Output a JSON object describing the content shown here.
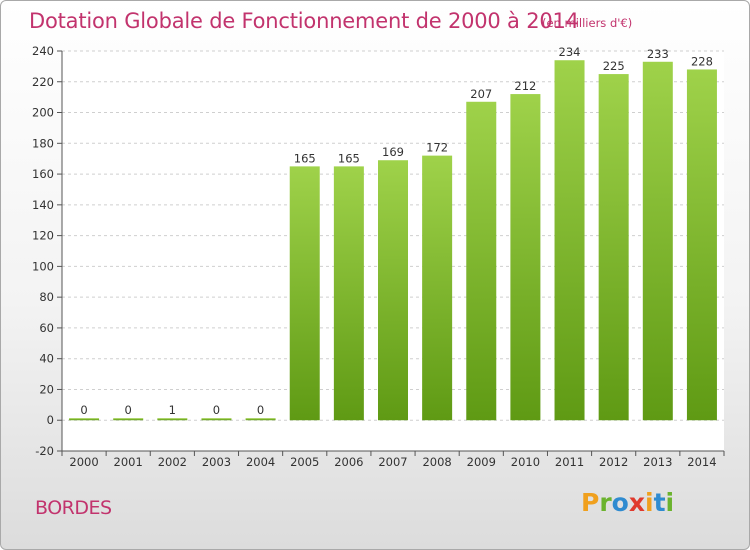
{
  "header": {
    "title": "Dotation Globale de Fonctionnement de 2000 à 2014",
    "subtitle": "(en milliers d'€)"
  },
  "footer": {
    "commune": "BORDES",
    "logo_text": "Proxiti"
  },
  "colors": {
    "title": "#c2336d",
    "bar_light": "#9fd24a",
    "bar_dark": "#5f9a14",
    "logo_letters": [
      "#f0a01e",
      "#6bb32e",
      "#2f8bd0",
      "#e03a2d",
      "#f0a01e",
      "#2f8bd0",
      "#6bb32e"
    ]
  },
  "chart_data": {
    "type": "bar",
    "title": "Dotation Globale de Fonctionnement de 2000 à 2014",
    "subtitle": "(en milliers d'€)",
    "categories": [
      "2000",
      "2001",
      "2002",
      "2003",
      "2004",
      "2005",
      "2006",
      "2007",
      "2008",
      "2009",
      "2010",
      "2011",
      "2012",
      "2013",
      "2014"
    ],
    "values": [
      0,
      0,
      1,
      0,
      0,
      165,
      165,
      169,
      172,
      207,
      212,
      234,
      225,
      233,
      228
    ],
    "data_labels": [
      "0",
      "0",
      "1",
      "0",
      "0",
      "165",
      "165",
      "169",
      "172",
      "207",
      "212",
      "234",
      "225",
      "233",
      "228"
    ],
    "ylim": [
      -20,
      240
    ],
    "yticks": [
      -20,
      0,
      20,
      40,
      60,
      80,
      100,
      120,
      140,
      160,
      180,
      200,
      220,
      240
    ],
    "grid": true,
    "xlabel": "",
    "ylabel": ""
  }
}
